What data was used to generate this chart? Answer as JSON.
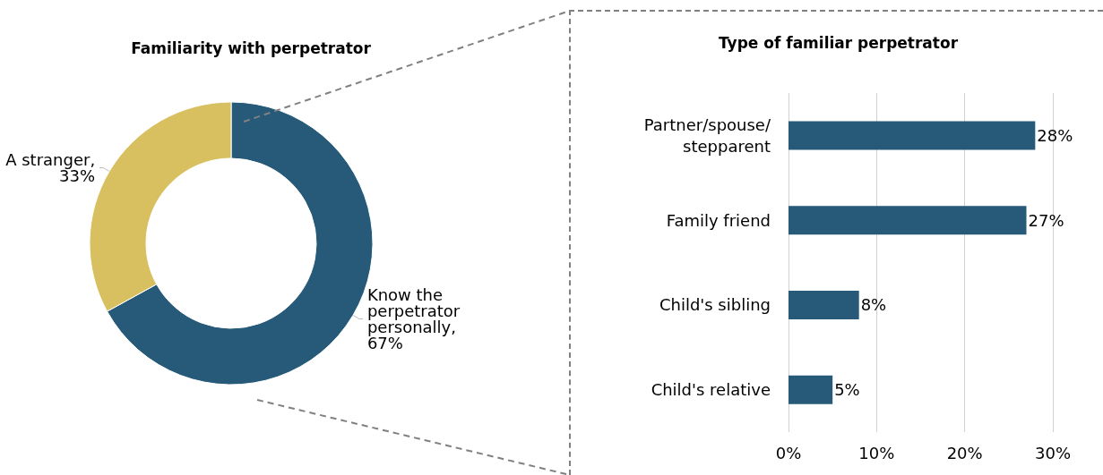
{
  "chart_data": [
    {
      "type": "donut",
      "title": "Familiarity with perpetrator",
      "categories": [
        "Know the perpetrator personally",
        "A stranger"
      ],
      "values": [
        67,
        33
      ],
      "colors": [
        "#265a78",
        "#d8c060"
      ],
      "value_labels": [
        ",\n67%",
        ",\n33%"
      ],
      "legend": false
    },
    {
      "type": "bar",
      "title": "Type of familiar perpetrator",
      "orientation": "horizontal",
      "categories": [
        "Partner/spouse/\nstepparent",
        "Family friend",
        "Child's sibling",
        "Child's relative"
      ],
      "series": [
        {
          "color": "#265a78",
          "values": [
            28,
            27,
            8,
            5
          ],
          "value_labels": [
            "28%",
            "27%",
            "8%",
            "5%"
          ]
        }
      ],
      "xlim": [
        0,
        30
      ],
      "xticks": [
        {
          "value": 0,
          "label": "0%"
        },
        {
          "value": 10,
          "label": "10%"
        },
        {
          "value": 20,
          "label": "20%"
        },
        {
          "value": 30,
          "label": "30%"
        }
      ],
      "grid": "x",
      "legend": false
    }
  ]
}
